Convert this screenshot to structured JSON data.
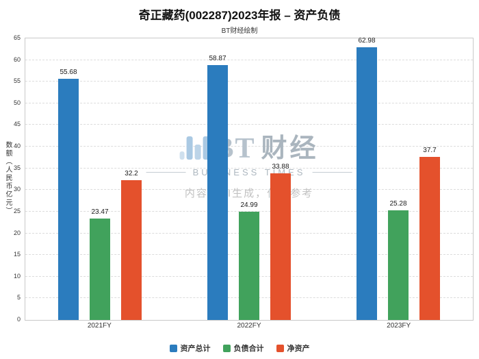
{
  "chart_data": {
    "type": "bar",
    "title": "奇正藏药(002287)2023年报 – 资产负债",
    "subtitle": "BT财经绘制",
    "ylabel": "数额（人民币亿元）",
    "categories": [
      "2021FY",
      "2022FY",
      "2023FY"
    ],
    "series": [
      {
        "name": "资产总计",
        "color": "#2b7cbe",
        "values": [
          55.68,
          58.87,
          62.98
        ],
        "labels": [
          "55.68",
          "58.87",
          "62.98"
        ]
      },
      {
        "name": "负债合计",
        "color": "#41a25c",
        "values": [
          23.47,
          24.99,
          25.28
        ],
        "labels": [
          "23.47",
          "24.99",
          "25.28"
        ]
      },
      {
        "name": "净资产",
        "color": "#e4512c",
        "values": [
          32.2,
          33.88,
          37.7
        ],
        "labels": [
          "32.2",
          "33.88",
          "37.7"
        ]
      }
    ],
    "ylim": [
      0,
      65
    ],
    "ytick_step": 5,
    "grid": "horizontal-dashed",
    "legend_position": "bottom"
  },
  "watermark": {
    "logo_bt": "BT",
    "logo_cn": "财经",
    "logo_sub": "BUSINESS TIMES",
    "disclaimer": "内容由AI生成，仅供参考"
  }
}
